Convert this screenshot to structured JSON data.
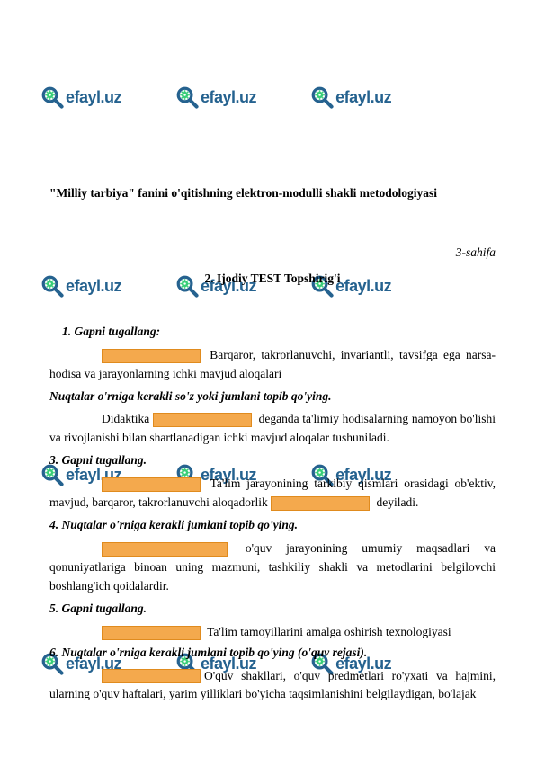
{
  "watermark": {
    "brand": "efayl.uz",
    "icon_color": "#1a5a8a",
    "gear_color": "#2ecc71"
  },
  "doc": {
    "title": "\"Milliy tarbiya\" fanini o'qitishning elektron-modulli shakli metodologiyasi",
    "page_label": "3-sahifa",
    "subtitle": "2. Ijodiy TEST Topshirig'i",
    "q1_label": "1.  Gapni tugallang:",
    "q1_text": " Barqaror, takrorlanuvchi, invariantli, tavsifga ega narsa-hodisa va jarayonlarning ichki mavjud aloqalari",
    "q2_label": "Nuqtalar o'rniga kerakli so'z yoki jumlani topib qo'ying.",
    "q2_pre": "Didaktika ",
    "q2_text": " deganda ta'limiy hodisalarning namoyon bo'lishi va rivojlanishi bilan shartlanadigan ichki mavjud aloqalar tushuniladi.",
    "q3_label": "3. Gapni tugallang.",
    "q3_text_a": " Ta'lim jarayonining tarkibiy qismlari orasidagi ob'ektiv, mavjud, barqaror, takrorlanuvchi aloqadorlik ",
    "q3_text_b": " deyiladi.",
    "q4_label": "4. Nuqtalar o'rniga kerakli jumlani topib qo'ying.",
    "q4_text": " o'quv jarayonining umumiy   maqsadlari va qonuniyatlariga binoan uning mazmuni, tashkiliy shakli va metodlarini belgilovchi boshlang'ich qoidalardir.",
    "q5_label": "5. Gapni tugallang.",
    "q5_text": " Ta'lim tamoyillarini amalga oshirish texnologiyasi",
    "q6_label": "6. Nuqtalar o'rniga kerakli jumlani topib qo'ying (o'quv rejasi).",
    "q6_text": "O'quv shakllari, o'quv predmetlari ro'yxati va hajmini, ularning o'quv haftalari, yarim yilliklari bo'yicha taqsimlanishini belgilaydigan, bo'lajak"
  }
}
